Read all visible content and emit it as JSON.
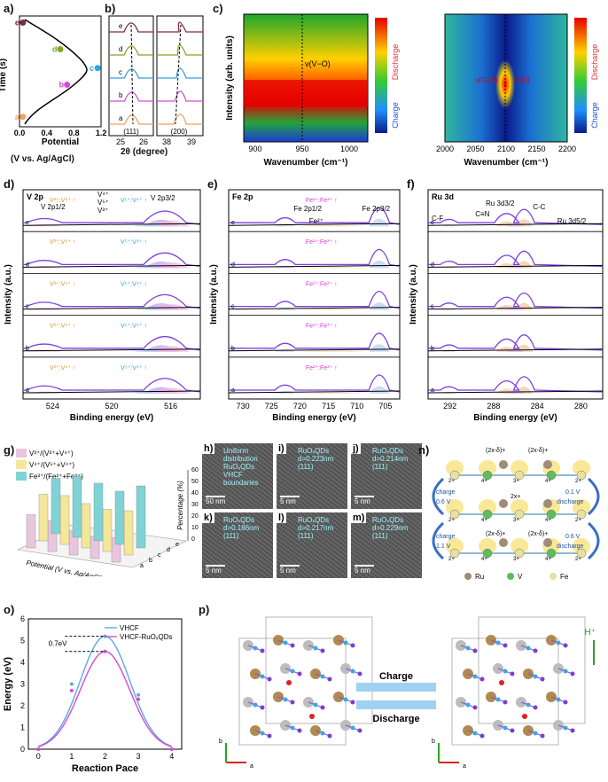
{
  "panels": {
    "a": {
      "label": "a)",
      "ylabel": "Time (s)",
      "xlabel1": "Potential",
      "xlabel2": "(V vs. Ag/AgCl)",
      "xticks": [
        "0.0",
        "0.4",
        "0.8",
        "1.2"
      ],
      "points": [
        {
          "tag": "a",
          "v": 0.05,
          "t": 0.9
        },
        {
          "tag": "b",
          "v": 0.7,
          "t": 3.8
        },
        {
          "tag": "c",
          "v": 1.15,
          "t": 5.3
        },
        {
          "tag": "d",
          "v": 0.6,
          "t": 7.0
        },
        {
          "tag": "e",
          "v": 0.05,
          "t": 9.4
        }
      ],
      "point_colors": [
        "#f4a460",
        "#d24bd2",
        "#29a6e6",
        "#7fa52a",
        "#7a2a4a"
      ]
    },
    "b": {
      "label": "b)",
      "xlabel": "2θ (degree)",
      "xticks_left": [
        "25",
        "26"
      ],
      "xticks_right": [
        "38",
        "39"
      ],
      "peak_left": "(111)",
      "peak_right": "(200)",
      "traces": [
        "a",
        "b",
        "c",
        "d",
        "e"
      ]
    },
    "c": {
      "label": "c)",
      "ylabel": "Intensity (arb. units)",
      "xlabel": "Wavenumber (cm⁻¹)",
      "left_xticks": [
        "900",
        "950",
        "1000"
      ],
      "right_xticks": [
        "2000",
        "2050",
        "2100",
        "2150",
        "2200"
      ],
      "left_annot": "ν(V−O)",
      "right_annot1": "ν(C≡N)",
      "right_annot2": "2010",
      "discharge": "Discharge",
      "charge": "Charge"
    },
    "d": {
      "label": "d)",
      "title": "V 2p",
      "peak_left": "V 2p1/2",
      "peak_right": "V 2p3/2",
      "states": [
        "V⁴⁺",
        "V⁵⁺",
        "V³⁺"
      ],
      "xlabel": "Binding energy (eV)",
      "ylabel": "Intensity (a.u.)",
      "xticks": [
        "524",
        "520",
        "516"
      ],
      "rows": [
        "e",
        "d",
        "c",
        "b",
        "a"
      ],
      "ratio_left": "V³⁺:V⁴⁺",
      "ratio_right": "V⁵⁺:V⁴⁺"
    },
    "e": {
      "label": "e)",
      "title": "Fe 2p",
      "peak_left": "Fe 2p1/2",
      "peak_right": "Fe 2p3/2",
      "state": "Fe²⁺",
      "xlabel": "Binding energy (eV)",
      "ylabel": "Intensity (a.u.)",
      "xticks": [
        "730",
        "725",
        "720",
        "715",
        "710",
        "705"
      ],
      "rows": [
        "e",
        "d",
        "c",
        "b",
        "a"
      ],
      "ratio": "Fe²⁺:Fe³⁺"
    },
    "f": {
      "label": "f)",
      "title": "Ru 3d",
      "peaks": [
        "C-F",
        "Ru 3d3/2",
        "C≡N",
        "C-C",
        "Ru 3d5/2"
      ],
      "xlabel": "Binding energy (eV)",
      "ylabel": "Intensity (a.u.)",
      "xticks": [
        "292",
        "288",
        "284",
        "280"
      ],
      "rows": [
        "e",
        "d",
        "c",
        "b",
        "a"
      ]
    },
    "g": {
      "label": "g)",
      "legend": [
        "V³⁺/(V³⁺+V⁴⁺)",
        "V⁴⁺/(V⁵⁺+V⁴⁺)",
        "Fe³⁺/(Fe²⁺+Fe³⁺)"
      ],
      "legend_colors": [
        "#e9c6df",
        "#f5e79a",
        "#7fd3d6"
      ],
      "zlabel": "Percentage (%)",
      "zticks": [
        "0",
        "10",
        "20",
        "30",
        "40",
        "50",
        "60"
      ],
      "xlabel": "Potential (V vs. Ag/AgCl)",
      "categories": [
        "a",
        "b",
        "c",
        "d",
        "e"
      ]
    },
    "tem": [
      {
        "tag": "h)",
        "lines": [
          "Uniform",
          "distribution",
          "RuOₓQDs",
          "VHCF",
          "boundaries"
        ],
        "scale": "50 nm"
      },
      {
        "tag": "i)",
        "lines": [
          "RuOₓQDs",
          "d=0.223nm",
          "(111)"
        ],
        "scale": "5 nm"
      },
      {
        "tag": "j)",
        "lines": [
          "RuOₓQDs",
          "d=0.214nm",
          "(111)"
        ],
        "scale": "5 nm"
      },
      {
        "tag": "k)",
        "lines": [
          "RuOₓQDs",
          "d=0.186nm",
          "(111)"
        ],
        "scale": "5 nm"
      },
      {
        "tag": "l)",
        "lines": [
          "RuOₓQDs",
          "d=0.217nm",
          "(111)"
        ],
        "scale": "5 nm"
      },
      {
        "tag": "m)",
        "lines": [
          "RuOₓQDs",
          "d=0.229nm",
          "(111)"
        ],
        "scale": "5 nm"
      }
    ],
    "n": {
      "label": "n)",
      "charge": "charge",
      "discharge": "discharge",
      "v1": "0.6 V",
      "v2": "0.1 V",
      "v3": "1.1 V",
      "v4": "0.6 V",
      "ox1": "(2x-δ)+",
      "ox2": "2x+",
      "ox3": "(2x-δ)+",
      "legend": [
        "Ru",
        "V",
        "Fe"
      ]
    },
    "o": {
      "label": "o)",
      "ylabel": "Energy (eV)",
      "xlabel": "Reaction Pace",
      "annot": "0.7eV",
      "xticks": [
        "0",
        "1",
        "2",
        "3",
        "4"
      ],
      "yticks": [
        "0",
        "1",
        "2",
        "3",
        "4",
        "5",
        "6"
      ]
    },
    "p": {
      "label": "p)",
      "charge": "Charge",
      "discharge": "Discharge",
      "ion": "H⁺",
      "axis_b": "b",
      "axis_a": "a"
    }
  },
  "chart_data": [
    {
      "type": "line",
      "title": "",
      "xlabel": "Reaction Pace",
      "ylabel": "Energy (eV)",
      "xlim": [
        -0.3,
        4.3
      ],
      "ylim": [
        0,
        6
      ],
      "series": [
        {
          "name": "VHCF",
          "color": "#5ba8e6",
          "x": [
            0,
            1,
            2,
            3,
            4
          ],
          "values": [
            0,
            3.0,
            5.2,
            2.5,
            0
          ]
        },
        {
          "name": "VHCF-RuOₓQDs",
          "color": "#d64ad6",
          "x": [
            0,
            1,
            2,
            3,
            4
          ],
          "values": [
            0,
            2.7,
            4.5,
            2.3,
            0
          ]
        }
      ]
    },
    {
      "type": "bar",
      "title": "",
      "categories": [
        "a",
        "b",
        "c",
        "d",
        "e"
      ],
      "zlabel": "Percentage (%)",
      "series": [
        {
          "name": "V³⁺/(V³⁺+V⁴⁺)",
          "values": [
            30,
            28,
            22,
            20,
            22
          ]
        },
        {
          "name": "V⁴⁺/(V⁵⁺+V⁴⁺)",
          "values": [
            42,
            44,
            40,
            38,
            40
          ]
        },
        {
          "name": "Fe³⁺/(Fe²⁺+Fe³⁺)",
          "values": [
            50,
            55,
            52,
            48,
            56
          ]
        }
      ]
    }
  ]
}
